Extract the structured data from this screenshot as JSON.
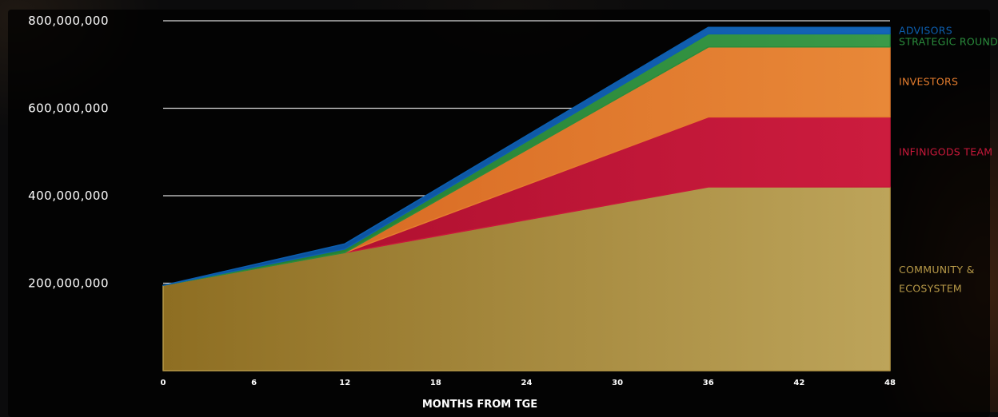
{
  "chart_data": {
    "type": "area",
    "stacked": true,
    "xlabel": "MONTHS FROM TGE",
    "ylabel": "",
    "x": [
      0,
      12,
      36,
      48
    ],
    "xticks": [
      "0",
      "6",
      "12",
      "18",
      "24",
      "30",
      "36",
      "42",
      "48"
    ],
    "xlim": [
      0,
      48
    ],
    "yticks": [
      "200,000,000",
      "400,000,000",
      "600,000,000",
      "800,000,000"
    ],
    "ylim": [
      0,
      800000000
    ],
    "grid": true,
    "legend_position": "right",
    "series": [
      {
        "name": "COMMUNITY & ECOSYSTEM",
        "color": "#b89a48",
        "values": [
          195000000,
          270000000,
          420000000,
          420000000
        ]
      },
      {
        "name": "INFINIGODS TEAM",
        "color": "#c8183a",
        "values": [
          0,
          0,
          160000000,
          160000000
        ]
      },
      {
        "name": "INVESTORS",
        "color": "#e57d2e",
        "values": [
          0,
          0,
          160000000,
          160000000
        ]
      },
      {
        "name": "STRATEGIC ROUND",
        "color": "#2a8c3c",
        "values": [
          0,
          8000000,
          30000000,
          30000000
        ]
      },
      {
        "name": "ADVISORS",
        "color": "#0d5fb0",
        "values": [
          0,
          12000000,
          15000000,
          15000000
        ]
      }
    ]
  }
}
